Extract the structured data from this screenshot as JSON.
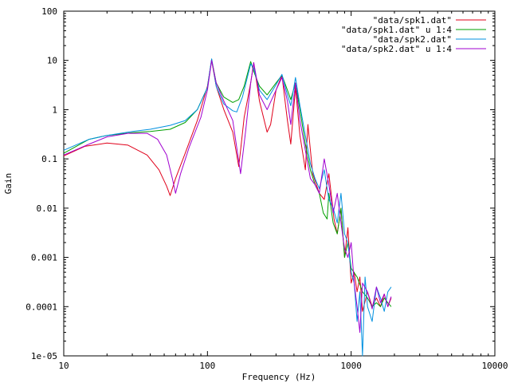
{
  "chart_data": {
    "type": "line",
    "title": "",
    "xlabel": "Frequency (Hz)",
    "ylabel": "Gain",
    "xscale": "log",
    "yscale": "log",
    "xlim": [
      10,
      10000
    ],
    "ylim": [
      1e-05,
      100
    ],
    "xticks": [
      10,
      100,
      1000,
      10000
    ],
    "xtick_labels": [
      "10",
      "100",
      "1000",
      "10000"
    ],
    "yticks": [
      1e-05,
      0.0001,
      0.001,
      0.01,
      0.1,
      1,
      10,
      100
    ],
    "ytick_labels": [
      "1e-05",
      "0.0001",
      "0.001",
      "0.01",
      "0.1",
      "1",
      "10",
      "100"
    ],
    "grid": false,
    "legend_position": "top-right",
    "series": [
      {
        "name": "\"data/spk1.dat\"",
        "color": "#e0001a",
        "x": [
          10,
          14,
          20,
          28,
          38,
          46,
          52,
          55,
          60,
          70,
          85,
          100,
          107,
          115,
          130,
          150,
          165,
          170,
          180,
          200,
          210,
          230,
          260,
          275,
          300,
          330,
          360,
          380,
          410,
          440,
          480,
          500,
          540,
          600,
          650,
          700,
          760,
          800,
          850,
          900,
          950,
          1000,
          1050,
          1100,
          1150,
          1200,
          1300,
          1400,
          1500,
          1600,
          1700,
          1800,
          1900
        ],
        "y": [
          0.115,
          0.18,
          0.21,
          0.19,
          0.12,
          0.06,
          0.028,
          0.018,
          0.04,
          0.13,
          0.6,
          3.0,
          10.0,
          3.0,
          1.0,
          0.35,
          0.07,
          0.15,
          0.7,
          3.5,
          9.0,
          1.5,
          0.35,
          0.5,
          2.5,
          5.0,
          0.6,
          0.2,
          2.8,
          0.3,
          0.06,
          0.5,
          0.05,
          0.02,
          0.015,
          0.05,
          0.006,
          0.003,
          0.01,
          0.001,
          0.004,
          0.0003,
          0.0005,
          0.0002,
          0.0004,
          8e-05,
          0.0002,
          0.0001,
          0.00015,
          0.0001,
          0.00018,
          0.0001,
          0.00015
        ]
      },
      {
        "name": "\"data/spk1.dat\" u 1:4",
        "color": "#00a000",
        "x": [
          10,
          15,
          20,
          30,
          40,
          55,
          70,
          85,
          100,
          107,
          115,
          130,
          150,
          165,
          180,
          200,
          210,
          230,
          260,
          300,
          330,
          360,
          380,
          410,
          440,
          480,
          520,
          560,
          600,
          640,
          680,
          700,
          750,
          800,
          850,
          900,
          950,
          1000,
          1100,
          1200,
          1300,
          1400,
          1500,
          1600,
          1700,
          1800,
          1900
        ],
        "y": [
          0.13,
          0.25,
          0.3,
          0.34,
          0.36,
          0.4,
          0.55,
          1.0,
          2.8,
          10.5,
          3.5,
          1.8,
          1.4,
          1.6,
          3.0,
          9.5,
          6.0,
          3.0,
          2.0,
          3.5,
          5.0,
          2.5,
          1.6,
          3.5,
          1.0,
          0.2,
          0.06,
          0.03,
          0.02,
          0.008,
          0.006,
          0.02,
          0.005,
          0.003,
          0.01,
          0.001,
          0.002,
          0.0006,
          0.0004,
          0.0002,
          0.00015,
          0.0001,
          0.00012,
          0.0001,
          0.00015,
          0.00012,
          0.0001
        ]
      },
      {
        "name": "\"data/spk2.dat\"",
        "color": "#0090e0",
        "x": [
          10,
          15,
          20,
          30,
          40,
          55,
          70,
          85,
          100,
          107,
          115,
          130,
          150,
          160,
          175,
          200,
          210,
          230,
          260,
          300,
          330,
          360,
          380,
          410,
          440,
          480,
          520,
          560,
          600,
          650,
          700,
          750,
          800,
          850,
          900,
          950,
          1000,
          1050,
          1100,
          1150,
          1200,
          1250,
          1300,
          1400,
          1500,
          1600,
          1700,
          1800,
          1900
        ],
        "y": [
          0.15,
          0.25,
          0.3,
          0.36,
          0.4,
          0.48,
          0.6,
          1.0,
          2.8,
          10.8,
          3.0,
          1.3,
          0.95,
          0.9,
          1.8,
          8.5,
          7.0,
          2.5,
          1.6,
          3.2,
          5.2,
          2.0,
          1.2,
          4.5,
          1.2,
          0.3,
          0.08,
          0.04,
          0.025,
          0.06,
          0.015,
          0.01,
          0.005,
          0.02,
          0.003,
          0.002,
          0.0005,
          0.0003,
          5e-05,
          0.0002,
          1e-05,
          0.0004,
          0.0001,
          5e-05,
          0.00025,
          0.00015,
          8e-05,
          0.0002,
          0.00025
        ]
      },
      {
        "name": "\"data/spk2.dat\" u 1:4",
        "color": "#a000d0",
        "x": [
          10,
          15,
          20,
          28,
          38,
          45,
          52,
          57,
          60,
          65,
          75,
          90,
          100,
          107,
          115,
          130,
          150,
          170,
          185,
          200,
          210,
          230,
          260,
          300,
          330,
          360,
          380,
          410,
          440,
          480,
          520,
          560,
          600,
          650,
          700,
          750,
          800,
          850,
          900,
          950,
          1000,
          1050,
          1100,
          1150,
          1200,
          1300,
          1400,
          1500,
          1600,
          1700,
          1800,
          1900
        ],
        "y": [
          0.12,
          0.2,
          0.28,
          0.33,
          0.33,
          0.25,
          0.12,
          0.04,
          0.02,
          0.05,
          0.18,
          0.7,
          2.5,
          10.0,
          3.5,
          1.5,
          0.6,
          0.05,
          0.4,
          3.5,
          9.0,
          2.0,
          1.0,
          2.5,
          4.5,
          1.5,
          0.5,
          3.5,
          0.6,
          0.15,
          0.04,
          0.03,
          0.02,
          0.1,
          0.03,
          0.008,
          0.02,
          0.005,
          0.0015,
          0.001,
          0.002,
          0.0003,
          0.0001,
          3e-05,
          0.0003,
          0.0002,
          9e-05,
          0.00025,
          0.00012,
          0.00018,
          0.0001,
          0.00016
        ]
      }
    ]
  }
}
